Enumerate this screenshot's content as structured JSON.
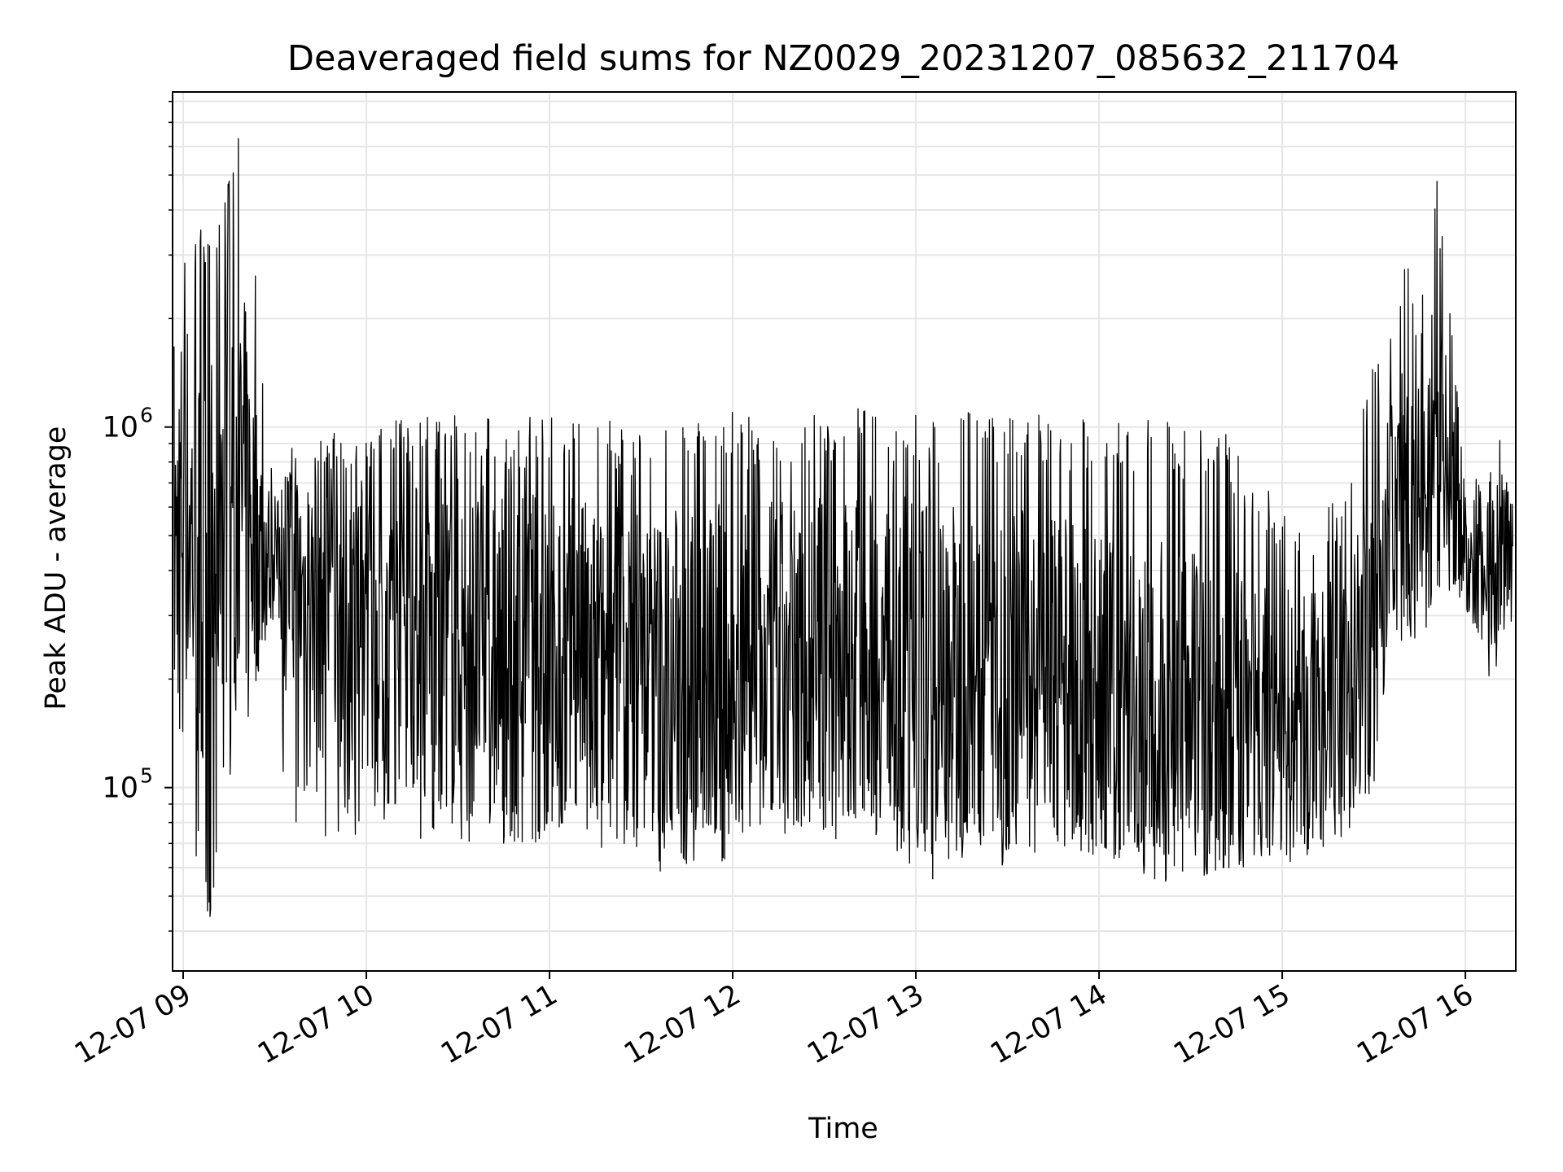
{
  "chart_data": {
    "type": "line",
    "title": "Deaveraged field sums for NZ0029_20231207_085632_211704",
    "xlabel": "Time",
    "ylabel": "Peak ADU - average",
    "yscale": "log",
    "ylim": [
      31000,
      8500000
    ],
    "xlim": [
      "2023-12-07 08:56:32",
      "2023-12-07 16:16:30"
    ],
    "grid": true,
    "line_color": "#000000",
    "grid_color": "#e6e6e6",
    "x_ticks": [
      {
        "value": "2023-12-07 09:00",
        "label": "12-07 09"
      },
      {
        "value": "2023-12-07 10:00",
        "label": "12-07 10"
      },
      {
        "value": "2023-12-07 11:00",
        "label": "12-07 11"
      },
      {
        "value": "2023-12-07 12:00",
        "label": "12-07 12"
      },
      {
        "value": "2023-12-07 13:00",
        "label": "12-07 13"
      },
      {
        "value": "2023-12-07 14:00",
        "label": "12-07 14"
      },
      {
        "value": "2023-12-07 15:00",
        "label": "12-07 15"
      },
      {
        "value": "2023-12-07 16:00",
        "label": "12-07 16"
      }
    ],
    "y_ticks": [
      {
        "value": 100000,
        "base": "10",
        "exponent": "5"
      },
      {
        "value": 1000000,
        "base": "10",
        "exponent": "6"
      }
    ],
    "series": [
      {
        "x": [
          "2023-12-07 08:57",
          "2023-12-07 09:00",
          "2023-12-07 09:03",
          "2023-12-07 09:06",
          "2023-12-07 09:09",
          "2023-12-07 09:12",
          "2023-12-07 09:15",
          "2023-12-07 09:18",
          "2023-12-07 09:21",
          "2023-12-07 09:24",
          "2023-12-07 09:27",
          "2023-12-07 09:30",
          "2023-12-07 09:33",
          "2023-12-07 09:36",
          "2023-12-07 09:39",
          "2023-12-07 09:42",
          "2023-12-07 09:45",
          "2023-12-07 09:48",
          "2023-12-07 09:51",
          "2023-12-07 09:54",
          "2023-12-07 09:57",
          "2023-12-07 10:00",
          "2023-12-07 10:10",
          "2023-12-07 10:20",
          "2023-12-07 10:30",
          "2023-12-07 10:40",
          "2023-12-07 10:50",
          "2023-12-07 11:00",
          "2023-12-07 11:10",
          "2023-12-07 11:20",
          "2023-12-07 11:30",
          "2023-12-07 11:40",
          "2023-12-07 11:50",
          "2023-12-07 12:00",
          "2023-12-07 12:10",
          "2023-12-07 12:20",
          "2023-12-07 12:30",
          "2023-12-07 12:40",
          "2023-12-07 12:50",
          "2023-12-07 13:00",
          "2023-12-07 13:10",
          "2023-12-07 13:20",
          "2023-12-07 13:30",
          "2023-12-07 13:40",
          "2023-12-07 13:50",
          "2023-12-07 14:00",
          "2023-12-07 14:10",
          "2023-12-07 14:20",
          "2023-12-07 14:30",
          "2023-12-07 14:40",
          "2023-12-07 14:50",
          "2023-12-07 15:00",
          "2023-12-07 15:10",
          "2023-12-07 15:20",
          "2023-12-07 15:30",
          "2023-12-07 15:35",
          "2023-12-07 15:40",
          "2023-12-07 15:45",
          "2023-12-07 15:50",
          "2023-12-07 15:55",
          "2023-12-07 16:00",
          "2023-12-07 16:05",
          "2023-12-07 16:10",
          "2023-12-07 16:15"
        ],
        "y_high": [
          2300000,
          3000000,
          3800000,
          3500000,
          4500000,
          6500000,
          4800000,
          6400000,
          4200000,
          2600000,
          1300000,
          650000,
          700000,
          900000,
          850000,
          800000,
          1100000,
          950000,
          1150000,
          1000000,
          950000,
          1000000,
          1050000,
          1100000,
          1150000,
          1100000,
          1050000,
          1100000,
          1100000,
          1050000,
          1000000,
          1050000,
          1050000,
          1100000,
          1050000,
          1100000,
          1100000,
          1150000,
          1050000,
          1100000,
          1050000,
          1150000,
          1100000,
          1100000,
          1050000,
          1100000,
          1050000,
          1050000,
          1000000,
          1050000,
          750000,
          650000,
          600000,
          650000,
          1500000,
          1700000,
          3200000,
          1900000,
          5600000,
          2100000,
          800000,
          750000,
          1200000,
          700000
        ],
        "y_low": [
          110000,
          130000,
          80000,
          45000,
          34000,
          85000,
          95000,
          190000,
          140000,
          200000,
          250000,
          300000,
          100000,
          75000,
          90000,
          110000,
          65000,
          70000,
          75000,
          80000,
          70000,
          90000,
          75000,
          70000,
          60000,
          65000,
          65000,
          75000,
          70000,
          65000,
          55000,
          60000,
          60000,
          60000,
          65000,
          65000,
          70000,
          70000,
          65000,
          60000,
          52000,
          65000,
          60000,
          65000,
          60000,
          65000,
          60000,
          55000,
          55000,
          60000,
          60000,
          60000,
          65000,
          70000,
          90000,
          250000,
          240000,
          250000,
          300000,
          350000,
          330000,
          190000,
          180000,
          270000
        ],
        "y_mid": [
          400000,
          700000,
          500000,
          300000,
          250000,
          900000,
          800000,
          700000,
          600000,
          500000,
          450000,
          420000,
          400000,
          380000,
          350000,
          340000,
          330000,
          320000,
          310000,
          300000,
          300000,
          280000,
          270000,
          260000,
          250000,
          240000,
          240000,
          240000,
          230000,
          220000,
          210000,
          210000,
          210000,
          210000,
          220000,
          220000,
          230000,
          240000,
          230000,
          220000,
          210000,
          200000,
          200000,
          200000,
          190000,
          180000,
          170000,
          160000,
          150000,
          150000,
          150000,
          150000,
          150000,
          170000,
          280000,
          550000,
          650000,
          600000,
          800000,
          700000,
          400000,
          420000,
          450000,
          450000
        ]
      }
    ]
  }
}
